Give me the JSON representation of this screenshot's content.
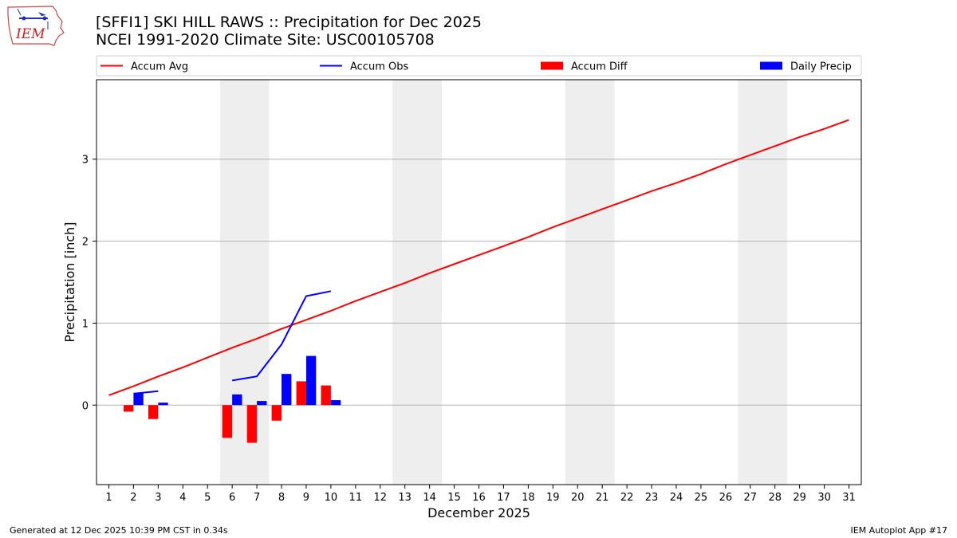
{
  "header": {
    "title_line1": "[SFFI1] SKI HILL RAWS :: Precipitation for Dec 2025",
    "title_line2": "NCEI 1991-2020 Climate Site: USC00105708",
    "logo_text": "IEM"
  },
  "footer": {
    "generated": "Generated at 12 Dec 2025 10:39 PM CST in 0.34s",
    "app": "IEM Autoplot App #17"
  },
  "colors": {
    "accum_avg": "#ff0000",
    "accum_obs": "#0000ff",
    "accum_diff": "#ff0000",
    "daily_precip": "#0000ff",
    "weekend_shade": "#eeeeee",
    "grid": "#b0b0b0"
  },
  "chart_data": {
    "type": "bar+line",
    "xlabel": "December 2025",
    "ylabel": "Precipitation [inch]",
    "xlim": [
      0.5,
      31.5
    ],
    "ylim": [
      -0.97,
      3.97
    ],
    "x_ticks": [
      1,
      2,
      3,
      4,
      5,
      6,
      7,
      8,
      9,
      10,
      11,
      12,
      13,
      14,
      15,
      16,
      17,
      18,
      19,
      20,
      21,
      22,
      23,
      24,
      25,
      26,
      27,
      28,
      29,
      30,
      31
    ],
    "y_ticks": [
      0,
      1,
      2,
      3
    ],
    "y_tick_labels": [
      "0",
      "1",
      "2",
      "3"
    ],
    "grid": "horizontal",
    "weekend_spans": [
      [
        5.5,
        7.5
      ],
      [
        12.5,
        14.5
      ],
      [
        19.5,
        21.5
      ],
      [
        26.5,
        28.5
      ]
    ],
    "legend": {
      "position": "top",
      "entries": [
        {
          "label": "Accum Avg",
          "kind": "line",
          "color": "#ff0000"
        },
        {
          "label": "Accum Obs",
          "kind": "line",
          "color": "#0000ff"
        },
        {
          "label": "Accum Diff",
          "kind": "bar",
          "color": "#ff0000"
        },
        {
          "label": "Daily Precip",
          "kind": "bar",
          "color": "#0000ff"
        }
      ]
    },
    "series": [
      {
        "name": "Accum Avg",
        "kind": "line",
        "x": [
          1,
          2,
          3,
          4,
          5,
          6,
          7,
          8,
          9,
          10,
          11,
          12,
          13,
          14,
          15,
          16,
          17,
          18,
          19,
          20,
          21,
          22,
          23,
          24,
          25,
          26,
          27,
          28,
          29,
          30,
          31
        ],
        "values": [
          0.12,
          0.23,
          0.35,
          0.46,
          0.58,
          0.7,
          0.81,
          0.93,
          1.04,
          1.15,
          1.27,
          1.38,
          1.49,
          1.61,
          1.72,
          1.83,
          1.94,
          2.05,
          2.17,
          2.28,
          2.39,
          2.5,
          2.61,
          2.71,
          2.82,
          2.94,
          3.05,
          3.16,
          3.27,
          3.37,
          3.48
        ]
      },
      {
        "name": "Accum Obs",
        "kind": "line",
        "segments": [
          {
            "x": [
              2,
              3
            ],
            "values": [
              0.14,
              0.17
            ]
          },
          {
            "x": [
              6,
              7,
              8,
              9,
              10
            ],
            "values": [
              0.3,
              0.35,
              0.74,
              1.33,
              1.39
            ]
          }
        ]
      },
      {
        "name": "Accum Diff",
        "kind": "bar",
        "x": [
          2,
          3,
          6,
          7,
          8,
          9,
          10
        ],
        "values": [
          -0.08,
          -0.17,
          -0.4,
          -0.46,
          -0.19,
          0.29,
          0.24
        ]
      },
      {
        "name": "Daily Precip",
        "kind": "bar",
        "x": [
          2,
          3,
          6,
          7,
          8,
          9,
          10
        ],
        "values": [
          0.15,
          0.03,
          0.13,
          0.05,
          0.38,
          0.6,
          0.06
        ]
      }
    ]
  }
}
